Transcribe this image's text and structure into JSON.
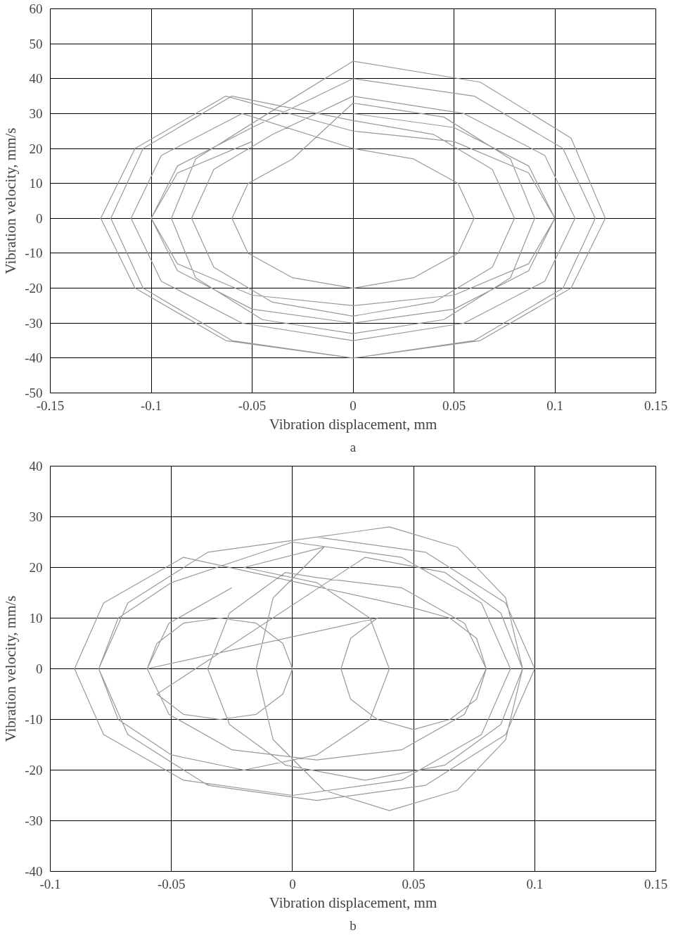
{
  "chart_data": [
    {
      "type": "line",
      "xlabel": "Vibration displacement, mm",
      "ylabel": "Vibration velocity, mm/s",
      "annotations": [
        "a"
      ],
      "xlim": [
        -0.15,
        0.15
      ],
      "ylim": [
        -50,
        60
      ],
      "xticks": [
        -0.15,
        -0.1,
        -0.05,
        0,
        0.05,
        0.1,
        0.15
      ],
      "yticks": [
        -50,
        -40,
        -30,
        -20,
        -10,
        0,
        10,
        20,
        30,
        40,
        50,
        60
      ],
      "grid": true,
      "marker": "none",
      "line_style": "solid",
      "series": [
        {
          "color": "#999999",
          "x": [
            0,
            0.05,
            0.087,
            0.1,
            0.087,
            0.05,
            0,
            -0.05,
            -0.087,
            -0.1,
            -0.087,
            -0.05,
            0,
            0.06,
            0.104,
            0.12,
            0.104,
            0.06,
            0,
            -0.06,
            -0.104,
            -0.12,
            -0.104,
            -0.06,
            0,
            0.04,
            0.069,
            0.08,
            0.069,
            0.04,
            0,
            -0.04,
            -0.069,
            -0.08,
            -0.069,
            -0.04,
            0,
            0.055,
            0.095,
            0.11,
            0.095,
            0.055,
            0,
            -0.055,
            -0.095,
            -0.11,
            -0.095,
            -0.055,
            0,
            0.03,
            0.052,
            0.06,
            0.052,
            0.03,
            0,
            -0.03,
            -0.052,
            -0.06,
            -0.052,
            -0.03,
            0,
            0.045,
            0.078,
            0.09,
            0.078,
            0.045,
            0,
            -0.045,
            -0.078,
            -0.09,
            -0.078,
            -0.045,
            0,
            0.063,
            0.108,
            0.125,
            0.108,
            0.063,
            0,
            -0.063,
            -0.108,
            -0.125,
            -0.108,
            -0.063,
            0,
            0.05,
            0.087,
            0.1,
            0.087,
            0.05,
            0,
            -0.05,
            -0.087,
            -0.1,
            -0.087,
            -0.05
          ],
          "values": [
            30,
            26,
            15,
            0,
            -15,
            -26,
            -30,
            -26,
            -15,
            0,
            15,
            26,
            40,
            35,
            20,
            0,
            -20,
            -35,
            -40,
            -35,
            -20,
            0,
            20,
            35,
            28,
            24,
            14,
            0,
            -14,
            -24,
            -28,
            -24,
            -14,
            0,
            14,
            24,
            35,
            30,
            18,
            0,
            -18,
            -30,
            -35,
            -30,
            -18,
            0,
            18,
            30,
            20,
            17,
            10,
            0,
            -10,
            -17,
            -20,
            -17,
            -10,
            0,
            10,
            17,
            33,
            29,
            17,
            0,
            -17,
            -29,
            -33,
            -29,
            -17,
            0,
            17,
            29,
            45,
            39,
            23,
            0,
            -20,
            -35,
            -40,
            -35,
            -20,
            0,
            20,
            35,
            25,
            22,
            13,
            0,
            -13,
            -22,
            -25,
            -22,
            -13,
            0,
            13,
            22
          ]
        }
      ]
    },
    {
      "type": "line",
      "xlabel": "Vibration displacement, mm",
      "ylabel": "Vibration velocity, mm/s",
      "annotations": [
        "b"
      ],
      "xlim": [
        -0.1,
        0.15
      ],
      "ylim": [
        -40,
        40
      ],
      "xticks": [
        -0.1,
        -0.05,
        0,
        0.05,
        0.1,
        0.15
      ],
      "yticks": [
        -40,
        -30,
        -20,
        -10,
        0,
        10,
        20,
        30,
        40
      ],
      "grid": true,
      "marker": "none",
      "line_style": "solid",
      "series": [
        {
          "color": "#999999",
          "x": [
            0.01,
            0.055,
            0.088,
            0.1,
            0.088,
            0.055,
            0.01,
            -0.035,
            -0.068,
            -0.08,
            -0.068,
            -0.035,
            0.04,
            0.068,
            0.088,
            0.095,
            0.088,
            0.068,
            0.04,
            0.013,
            -0.008,
            -0.015,
            -0.008,
            0.013,
            -0.02,
            0.01,
            0.032,
            0.04,
            0.032,
            0.01,
            -0.02,
            -0.05,
            -0.072,
            -0.08,
            -0.072,
            -0.05,
            0,
            0.045,
            0.078,
            0.09,
            0.078,
            0.045,
            0,
            -0.045,
            -0.078,
            -0.09,
            -0.078,
            -0.045,
            0.05,
            0.065,
            0.076,
            0.08,
            0.076,
            0.065,
            0.05,
            0.035,
            0.024,
            0.02,
            0.024,
            0.035,
            -0.06,
            -0.056,
            -0.045,
            -0.03,
            -0.015,
            -0.004,
            0,
            -0.004,
            -0.015,
            -0.03,
            -0.045,
            -0.056,
            0.03,
            0.063,
            0.086,
            0.095,
            0.086,
            0.063,
            0.03,
            -0.003,
            -0.026,
            -0.035,
            -0.026,
            -0.003,
            0.01,
            0.045,
            0.071,
            0.08,
            0.071,
            0.045,
            0.01,
            -0.025,
            -0.051,
            -0.06,
            -0.051,
            -0.025
          ],
          "values": [
            26,
            23,
            13,
            0,
            -13,
            -23,
            -26,
            -23,
            -13,
            0,
            13,
            23,
            28,
            24,
            14,
            0,
            -14,
            -24,
            -28,
            -24,
            -14,
            0,
            14,
            24,
            20,
            17,
            10,
            0,
            -10,
            -17,
            -20,
            -17,
            -10,
            0,
            10,
            17,
            25,
            22,
            13,
            0,
            -13,
            -22,
            -25,
            -22,
            -13,
            0,
            13,
            22,
            12,
            10,
            6,
            0,
            -6,
            -10,
            -12,
            -10,
            -6,
            0,
            6,
            10,
            0,
            5,
            9,
            10,
            9,
            5,
            0,
            -5,
            -9,
            -10,
            -9,
            -5,
            22,
            19,
            11,
            0,
            -11,
            -19,
            -22,
            -19,
            -11,
            0,
            11,
            19,
            18,
            16,
            9,
            0,
            -9,
            -16,
            -18,
            -16,
            -9,
            0,
            9,
            16
          ]
        }
      ]
    }
  ]
}
